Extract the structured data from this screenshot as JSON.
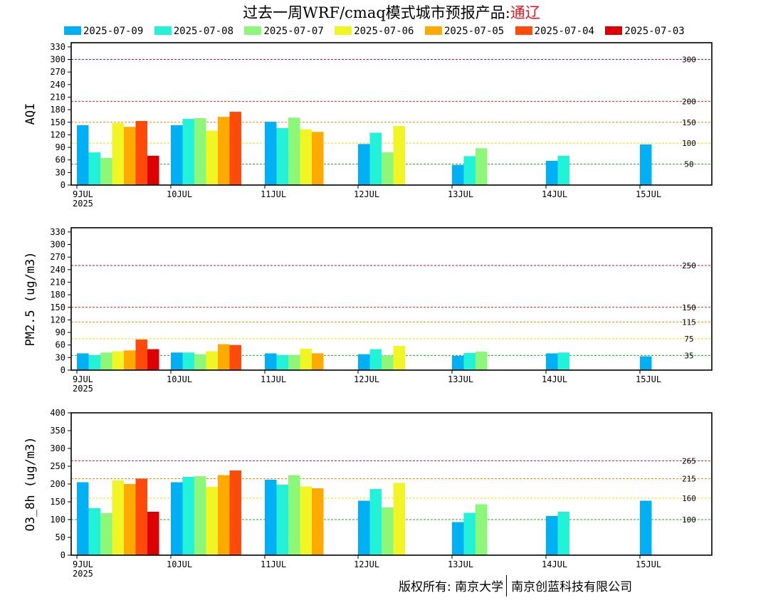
{
  "title": {
    "prefix": "过去一周WRF/cmaq模式城市预报产品:",
    "city": "通辽"
  },
  "legend": [
    {
      "label": "2025-07-09",
      "color": "#00b0f5"
    },
    {
      "label": "2025-07-08",
      "color": "#22f2d8"
    },
    {
      "label": "2025-07-07",
      "color": "#8df77a"
    },
    {
      "label": "2025-07-06",
      "color": "#f0f523"
    },
    {
      "label": "2025-07-05",
      "color": "#ffaa00"
    },
    {
      "label": "2025-07-04",
      "color": "#ff4a0a"
    },
    {
      "label": "2025-07-03",
      "color": "#dd0000"
    }
  ],
  "copyright": {
    "left": "版权所有: 南京大学",
    "right": "南京创蓝科技有限公司"
  },
  "chart_data": [
    {
      "type": "bar",
      "ylabel": "AQI",
      "ylim": [
        0,
        340
      ],
      "yticks": [
        0,
        30,
        60,
        90,
        120,
        150,
        180,
        210,
        240,
        270,
        300,
        330
      ],
      "categories": [
        "9JUL",
        "10JUL",
        "11JUL",
        "12JUL",
        "13JUL",
        "14JUL",
        "15JUL"
      ],
      "first_category_sublabel": "2025",
      "thresholds": [
        {
          "value": 300,
          "label": "300",
          "color": "#b0104f"
        },
        {
          "value": 200,
          "label": "200",
          "color": "#dd2222"
        },
        {
          "value": 150,
          "label": "150",
          "color": "#ee8800"
        },
        {
          "value": 100,
          "label": "100",
          "color": "#eedd00"
        },
        {
          "value": 50,
          "label": "50",
          "color": "#22aa22"
        }
      ],
      "series": [
        {
          "name": "2025-07-09",
          "values": [
            143,
            143,
            151,
            98,
            48,
            58,
            97
          ]
        },
        {
          "name": "2025-07-08",
          "values": [
            78,
            158,
            136,
            125,
            69,
            70,
            null
          ]
        },
        {
          "name": "2025-07-07",
          "values": [
            65,
            160,
            161,
            78,
            88,
            null,
            null
          ]
        },
        {
          "name": "2025-07-06",
          "values": [
            148,
            130,
            133,
            141,
            null,
            null,
            null
          ]
        },
        {
          "name": "2025-07-05",
          "values": [
            139,
            163,
            127,
            null,
            null,
            null,
            null
          ]
        },
        {
          "name": "2025-07-04",
          "values": [
            153,
            175,
            null,
            null,
            null,
            null,
            null
          ]
        },
        {
          "name": "2025-07-03",
          "values": [
            70,
            null,
            null,
            null,
            null,
            null,
            null
          ]
        }
      ]
    },
    {
      "type": "bar",
      "ylabel": "PM2.5 (ug/m3)",
      "ylim": [
        0,
        340
      ],
      "yticks": [
        0,
        30,
        60,
        90,
        120,
        150,
        180,
        210,
        240,
        270,
        300,
        330
      ],
      "categories": [
        "9JUL",
        "10JUL",
        "11JUL",
        "12JUL",
        "13JUL",
        "14JUL",
        "15JUL"
      ],
      "first_category_sublabel": "2025",
      "thresholds": [
        {
          "value": 250,
          "label": "250",
          "color": "#b0104f"
        },
        {
          "value": 150,
          "label": "150",
          "color": "#dd2222"
        },
        {
          "value": 115,
          "label": "115",
          "color": "#ee8800"
        },
        {
          "value": 75,
          "label": "75",
          "color": "#eedd00"
        },
        {
          "value": 35,
          "label": "35",
          "color": "#22aa22"
        }
      ],
      "series": [
        {
          "name": "2025-07-09",
          "values": [
            40,
            42,
            40,
            38,
            34,
            40,
            33
          ]
        },
        {
          "name": "2025-07-08",
          "values": [
            36,
            42,
            36,
            50,
            41,
            42,
            null
          ]
        },
        {
          "name": "2025-07-07",
          "values": [
            42,
            38,
            36,
            35,
            44,
            null,
            null
          ]
        },
        {
          "name": "2025-07-06",
          "values": [
            45,
            45,
            51,
            58,
            null,
            null,
            null
          ]
        },
        {
          "name": "2025-07-05",
          "values": [
            47,
            62,
            40,
            null,
            null,
            null,
            null
          ]
        },
        {
          "name": "2025-07-04",
          "values": [
            73,
            60,
            null,
            null,
            null,
            null,
            null
          ]
        },
        {
          "name": "2025-07-03",
          "values": [
            50,
            null,
            null,
            null,
            null,
            null,
            null
          ]
        }
      ]
    },
    {
      "type": "bar",
      "ylabel": "O3_8h (ug/m3)",
      "ylim": [
        0,
        400
      ],
      "yticks": [
        0,
        50,
        100,
        150,
        200,
        250,
        300,
        350,
        400
      ],
      "categories": [
        "9JUL",
        "10JUL",
        "11JUL",
        "12JUL",
        "13JUL",
        "14JUL",
        "15JUL"
      ],
      "first_category_sublabel": "2025",
      "thresholds": [
        {
          "value": 265,
          "label": "265",
          "color": "#dd2222"
        },
        {
          "value": 215,
          "label": "215",
          "color": "#ee8800"
        },
        {
          "value": 160,
          "label": "160",
          "color": "#eedd00"
        },
        {
          "value": 100,
          "label": "100",
          "color": "#22aa22"
        }
      ],
      "series": [
        {
          "name": "2025-07-09",
          "values": [
            205,
            205,
            212,
            153,
            93,
            110,
            153
          ]
        },
        {
          "name": "2025-07-08",
          "values": [
            132,
            220,
            198,
            186,
            119,
            122,
            null
          ]
        },
        {
          "name": "2025-07-07",
          "values": [
            118,
            222,
            225,
            134,
            143,
            null,
            null
          ]
        },
        {
          "name": "2025-07-06",
          "values": [
            210,
            192,
            193,
            203,
            null,
            null,
            null
          ]
        },
        {
          "name": "2025-07-05",
          "values": [
            200,
            225,
            188,
            null,
            null,
            null,
            null
          ]
        },
        {
          "name": "2025-07-04",
          "values": [
            215,
            238,
            null,
            null,
            null,
            null,
            null
          ]
        },
        {
          "name": "2025-07-03",
          "values": [
            122,
            null,
            null,
            null,
            null,
            null,
            null
          ]
        }
      ]
    }
  ]
}
